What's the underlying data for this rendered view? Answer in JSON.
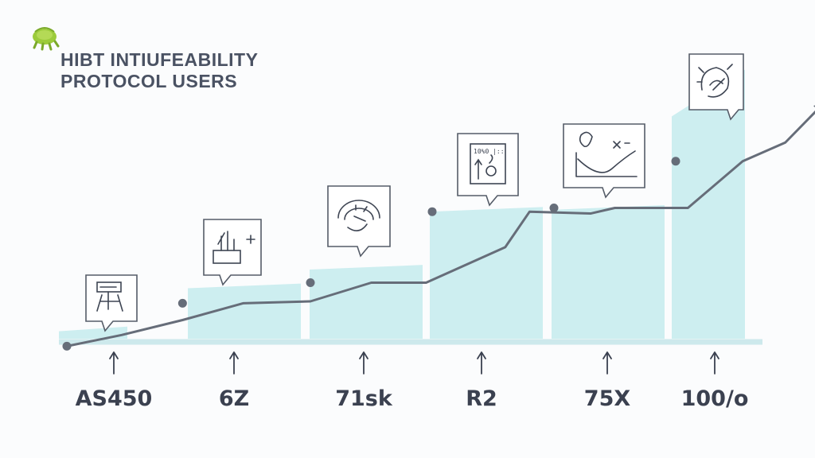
{
  "header": {
    "title_line1": "HIBT INTIUFEABILITY",
    "title_line2": "PROTOCOL USERS",
    "logo_icon": "sprout-logo-icon"
  },
  "colors": {
    "bar_fill": "#cdeef0",
    "line": "#666d79",
    "baseline": "#cde9ec",
    "text": "#3b4150"
  },
  "chart_data": {
    "type": "bar",
    "title": "HIBT INTIUFEABILITY PROTOCOL USERS",
    "categories": [
      "AS450",
      "6Z",
      "71sk",
      "R2",
      "75X",
      "100/o"
    ],
    "series": [
      {
        "type": "area",
        "values": [
          0.4,
          2.7,
          3.7,
          6.8,
          6.9,
          11.9
        ]
      },
      {
        "type": "line",
        "x": [
          0,
          0.45,
          0.95,
          1.45,
          2.0,
          2.5,
          2.95,
          3.6,
          3.8,
          4.3,
          4.5,
          5.1,
          5.55,
          5.9,
          6.2
        ],
        "values": [
          -0.4,
          0.2,
          1.0,
          1.9,
          2.0,
          3.0,
          3.0,
          4.9,
          6.8,
          6.7,
          7.0,
          7.0,
          9.5,
          10.5,
          12.5
        ]
      }
    ],
    "markers": [
      {
        "x": 0,
        "y": -0.4
      },
      {
        "x": 0.95,
        "y": 1.9
      },
      {
        "x": 2.0,
        "y": 3.0
      },
      {
        "x": 3.0,
        "y": 6.8
      },
      {
        "x": 4.0,
        "y": 7.0
      },
      {
        "x": 5.0,
        "y": 9.5
      }
    ],
    "callout_icons": [
      {
        "category": "AS450",
        "icon": "drone-icon"
      },
      {
        "category": "6Z",
        "icon": "chart-growth-icon"
      },
      {
        "category": "71sk",
        "icon": "gauge-icon"
      },
      {
        "category": "R2",
        "icon": "upload-arrow-icon",
        "text": "10%0 |::"
      },
      {
        "category": "75X",
        "icon": "curve-graph-icon"
      },
      {
        "category": "100/o",
        "icon": "target-sketch-icon"
      }
    ],
    "ylim": [
      -1,
      15
    ],
    "grid": false,
    "legend": "none"
  }
}
